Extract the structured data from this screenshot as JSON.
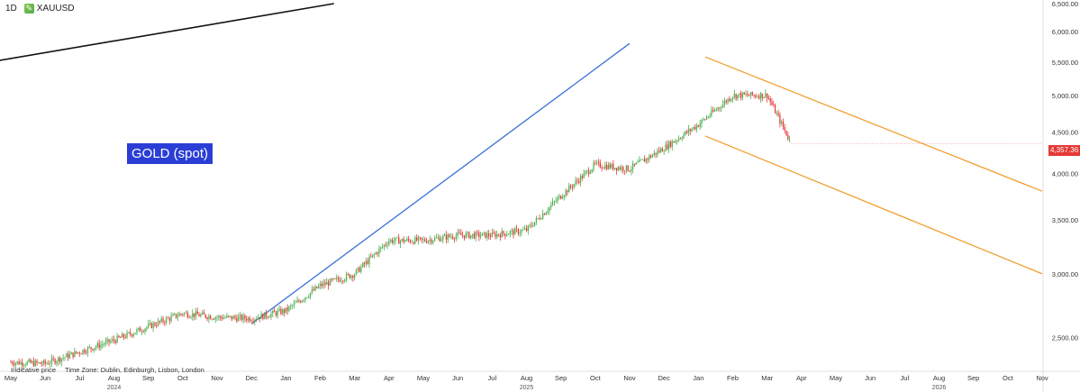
{
  "header": {
    "interval": "1D",
    "symbol": "XAUUSD",
    "symbol_icon": "pencil-icon"
  },
  "annotation": {
    "label": "GOLD (spot)"
  },
  "footer": {
    "note": "Indicative price",
    "timezone": "Time Zone: Dublin, Edinburgh, Lisbon, London"
  },
  "last_price": "4,357.36",
  "colors": {
    "trend_black": "#111111",
    "trend_blue": "#3a6fd8",
    "channel_orange": "#f0a030",
    "up": "#4caf50",
    "down": "#e53935",
    "label_bg": "#2a3ed6"
  },
  "chart_data": {
    "type": "candlestick",
    "title": "",
    "xlabel": "",
    "ylabel": "",
    "y_scale": "log",
    "ylim": [
      2270,
      6500
    ],
    "y_ticks": [
      "6,500.00",
      "6,000.00",
      "5,500.00",
      "5,000.00",
      "4,500.00",
      "4,000.00",
      "3,500.00",
      "3,000.00",
      "2,500.00"
    ],
    "y_tick_values": [
      6500,
      6000,
      5500,
      5000,
      4500,
      4000,
      3500,
      3000,
      2500
    ],
    "x_ticks": [
      "May",
      "Jun",
      "Jul",
      "Aug",
      "Sep",
      "Oct",
      "Nov",
      "Dec",
      "Jan",
      "Feb",
      "Mar",
      "Apr",
      "May",
      "Jun",
      "Jul",
      "Aug",
      "Sep",
      "Oct",
      "Nov",
      "Dec",
      "Jan",
      "Feb",
      "Mar",
      "Apr",
      "May",
      "Jun",
      "Jul",
      "Aug",
      "Sep",
      "Oct",
      "Nov"
    ],
    "year_labels": [
      {
        "label": "2024",
        "month_index": 3
      },
      {
        "label": "2025",
        "month_index": 15
      },
      {
        "label": "2026",
        "month_index": 27
      }
    ],
    "price_path": [
      [
        "May",
        2330
      ],
      [
        "Jun",
        2320
      ],
      [
        "Jul",
        2400
      ],
      [
        "Aug",
        2480
      ],
      [
        "Sep",
        2580
      ],
      [
        "Oct",
        2680
      ],
      [
        "Nov",
        2650
      ],
      [
        "Dec",
        2640
      ],
      [
        "Jan",
        2700
      ],
      [
        "Feb",
        2900
      ],
      [
        "Mar",
        3000
      ],
      [
        "Apr",
        3300
      ],
      [
        "May",
        3300
      ],
      [
        "Jun",
        3350
      ],
      [
        "Jul",
        3350
      ],
      [
        "Aug",
        3400
      ],
      [
        "Sep",
        3750
      ],
      [
        "Oct",
        4100
      ],
      [
        "Nov",
        4050
      ],
      [
        "Dec",
        4300
      ],
      [
        "Jan",
        4600
      ],
      [
        "Feb",
        5000
      ],
      [
        "Mar",
        5000
      ],
      [
        "Mar",
        4357
      ]
    ],
    "trendlines": [
      {
        "name": "black",
        "from": [
          "May",
          5500
        ],
        "to": [
          "Jan",
          6500
        ]
      },
      {
        "name": "blue",
        "from": [
          "Dec",
          2600
        ],
        "to": [
          "Nov",
          5800
        ]
      },
      {
        "name": "orange_upper",
        "from": [
          "Jan",
          5580
        ],
        "to": [
          "Nov",
          3800
        ]
      },
      {
        "name": "orange_lower",
        "from": [
          "Jan",
          4450
        ],
        "to": [
          "Nov",
          3000
        ]
      }
    ]
  }
}
